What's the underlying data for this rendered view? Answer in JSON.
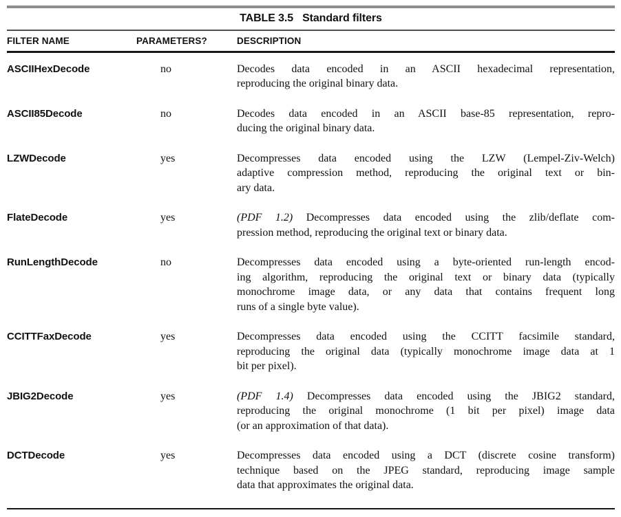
{
  "page": {
    "title_label": "TABLE 3.5",
    "title_text": "Standard filters"
  },
  "table": {
    "columns": [
      "FILTER NAME",
      "PARAMETERS?",
      "DESCRIPTION"
    ],
    "rows": [
      {
        "filter_name": "ASCIIHexDecode",
        "parameters": "no",
        "description_lines": [
          {
            "text": "Decodes data encoded in an ASCII hexadecimal representation,"
          },
          {
            "text": "reproducing the original binary data.",
            "last": true
          }
        ]
      },
      {
        "filter_name": "ASCII85Decode",
        "parameters": "no",
        "description_lines": [
          {
            "text": "Decodes data encoded in an ASCII base-85 representation, repro-"
          },
          {
            "text": "ducing the original binary data.",
            "last": true
          }
        ]
      },
      {
        "filter_name": "LZWDecode",
        "parameters": "yes",
        "description_lines": [
          {
            "text": "Decompresses data encoded using the LZW (Lempel-Ziv-Welch)"
          },
          {
            "text": "adaptive compression method, reproducing the original text or bin-"
          },
          {
            "text": "ary data.",
            "last": true
          }
        ]
      },
      {
        "filter_name": "FlateDecode",
        "parameters": "yes",
        "description_lines": [
          {
            "italic": "(PDF 1.2)",
            "text": " Decompresses data encoded using the zlib/deflate com-"
          },
          {
            "text": "pression method, reproducing the original text or binary data.",
            "last": true
          }
        ]
      },
      {
        "filter_name": "RunLengthDecode",
        "parameters": "no",
        "description_lines": [
          {
            "text": "Decompresses data encoded using a byte-oriented run-length encod-"
          },
          {
            "text": "ing algorithm, reproducing the original text or binary data (typically"
          },
          {
            "text": "monochrome image data, or any data that contains frequent long"
          },
          {
            "text": "runs of a single byte value).",
            "last": true
          }
        ]
      },
      {
        "filter_name": "CCITTFaxDecode",
        "parameters": "yes",
        "description_lines": [
          {
            "text": "Decompresses data encoded using the CCITT facsimile standard,"
          },
          {
            "text": "reproducing the original data (typically monochrome image data at 1"
          },
          {
            "text": "bit per pixel).",
            "last": true
          }
        ]
      },
      {
        "filter_name": "JBIG2Decode",
        "parameters": "yes",
        "description_lines": [
          {
            "italic": "(PDF 1.4)",
            "text": " Decompresses data encoded using the JBIG2 standard,"
          },
          {
            "text": "reproducing the original monochrome (1 bit per pixel) image data"
          },
          {
            "text": "(or an approximation of that data).",
            "last": true
          }
        ]
      },
      {
        "filter_name": "DCTDecode",
        "parameters": "yes",
        "description_lines": [
          {
            "text": "Decompresses data encoded using a DCT (discrete cosine transform)"
          },
          {
            "text": "technique based on the JPEG standard, reproducing image sample"
          },
          {
            "text": "data that approximates the original data.",
            "last": true
          }
        ]
      }
    ]
  },
  "colors": {
    "rule_top": "#8d8d8d",
    "rule_mid": "#4f4f4f",
    "rule_dark": "#161616",
    "text": "#111111",
    "background": "#ffffff"
  }
}
